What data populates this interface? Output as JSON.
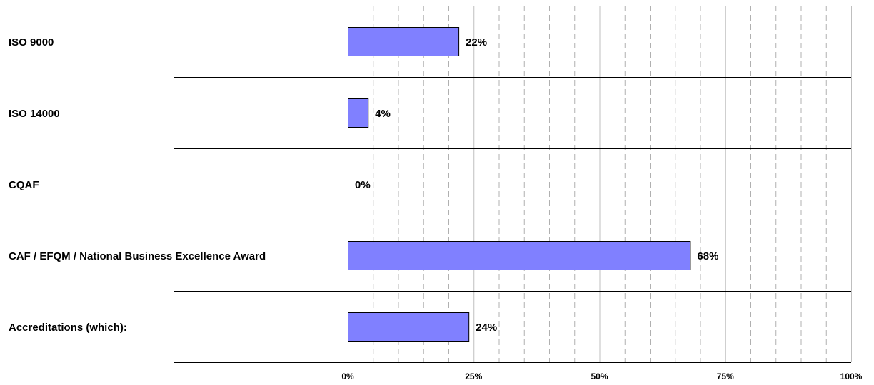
{
  "chart_data": {
    "type": "bar",
    "orientation": "horizontal",
    "categories": [
      "ISO 9000",
      "ISO 14000",
      "CQAF",
      "CAF / EFQM / National Business Excellence Award",
      "Accreditations (which):"
    ],
    "values": [
      22,
      4,
      0,
      68,
      24
    ],
    "value_labels": [
      "22%",
      "4%",
      "0%",
      "68%",
      "24%"
    ],
    "xlim": [
      0,
      100
    ],
    "x_ticks": [
      0,
      25,
      50,
      75,
      100
    ],
    "x_tick_labels": [
      "0%",
      "25%",
      "50%",
      "75%",
      "100%"
    ],
    "title": "",
    "xlabel": "",
    "ylabel": "",
    "grid": {
      "major": "solid",
      "minor": "dashed"
    },
    "legend": "none",
    "colors": {
      "bar_fill": "#8080ff",
      "bar_stroke": "#000000",
      "major_grid": "#bfbfbf",
      "minor_grid": "#b0b0b0",
      "row_separator": "#000000"
    }
  }
}
